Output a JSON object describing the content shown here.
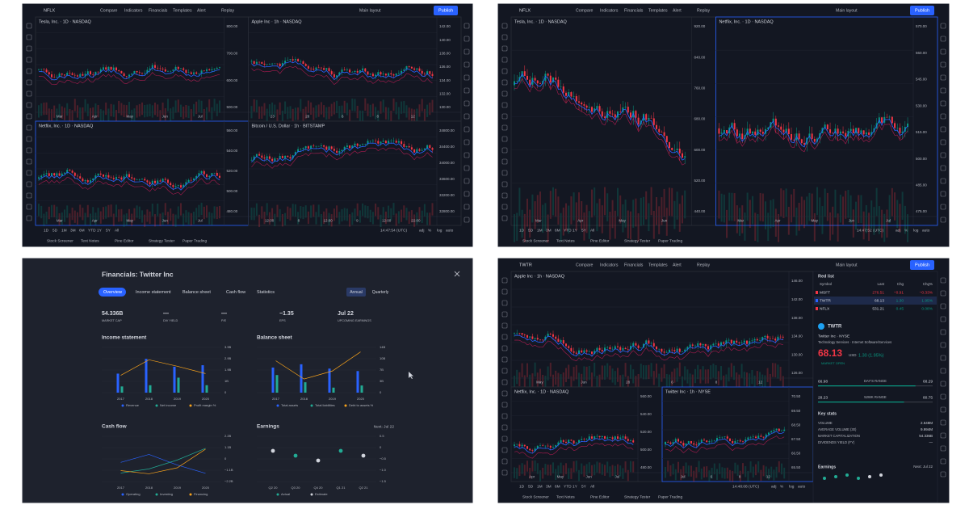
{
  "toolbar": {
    "items": [
      "Compare",
      "Indicators",
      "Financials",
      "Templates",
      "Alert",
      "Replay"
    ],
    "layout": "Main layout",
    "publish": "Publish"
  },
  "ranges": [
    "1D",
    "5D",
    "1M",
    "3M",
    "6M",
    "YTD",
    "1Y",
    "5Y",
    "All"
  ],
  "chart_options": [
    "adj",
    "%",
    "log",
    "auto"
  ],
  "bottom_tabs": [
    "Stock Screener",
    "Text Notes",
    "Pine Editor",
    "Strategy Tester",
    "Paper Trading"
  ],
  "screens": [
    {
      "symbol": "NFLX",
      "time": "14:47:54 (UTC)",
      "panes": [
        {
          "title": "Tesla, Inc. · 1D · NASDAQ",
          "axis": [
            "800.00",
            "700.00",
            "600.00",
            "500.00"
          ],
          "dates": [
            "Mar",
            "Apr",
            "May",
            "Jun",
            "Jul"
          ]
        },
        {
          "title": "Apple Inc · 1h · NASDAQ",
          "axis": [
            "142.00",
            "140.00",
            "138.00",
            "136.00",
            "134.00",
            "132.00",
            "130.00"
          ],
          "dates": [
            "23",
            "28",
            "6",
            "8",
            "12"
          ]
        },
        {
          "title": "Netflix, Inc. · 1D · NASDAQ",
          "axis": [
            "560.00",
            "540.00",
            "520.00",
            "500.00",
            "480.00"
          ],
          "dates": [
            "Mar",
            "Apr",
            "May",
            "Jun",
            "Jul"
          ]
        },
        {
          "title": "Bitcoin / U.S. Dollar · 1h · BITSTAMP",
          "axis": [
            "34800.00",
            "34400.00",
            "34000.00",
            "33600.00",
            "33200.00",
            "32800.00"
          ],
          "dates": [
            "12:00",
            "8",
            "12:00",
            "9",
            "12:00",
            "22:00"
          ]
        }
      ]
    },
    {
      "symbol": "NFLX",
      "time": "14:47:52 (UTC)",
      "panes": [
        {
          "title": "Tesla, Inc. · 1D · NASDAQ",
          "axis": [
            "920.00",
            "840.00",
            "760.00",
            "680.00",
            "600.00",
            "520.00",
            "440.00"
          ],
          "dates": [
            "Mar",
            "Apr",
            "May",
            "Jun"
          ]
        },
        {
          "title": "Netflix, Inc. · 1D · NASDAQ",
          "axis": [
            "570.00",
            "560.00",
            "545.00",
            "530.00",
            "515.00",
            "500.00",
            "485.00",
            "475.00"
          ],
          "dates": [
            "Mar",
            "Apr",
            "May",
            "Jun",
            "Jul"
          ]
        }
      ]
    },
    {
      "symbol": "TWTR",
      "time": "14:48:08 (UTC)",
      "panes": [
        {
          "title": "Apple Inc · 1h · NASDAQ",
          "axis": [
            "146.00",
            "142.00",
            "138.00",
            "134.00",
            "130.00",
            "126.00"
          ],
          "dates": [
            "May",
            "Jun",
            "28",
            "6",
            "8",
            "12"
          ]
        },
        {
          "title": "Netflix, Inc. · 1D · NASDAQ",
          "axis": [
            "560.00",
            "540.00",
            "520.00",
            "500.00",
            "480.00"
          ],
          "dates": [
            "Apr",
            "May",
            "Jun",
            "Jul"
          ]
        },
        {
          "title": "Twitter Inc · 1h · NYSE",
          "axis": [
            "70.50",
            "69.50",
            "68.50",
            "67.50",
            "66.50",
            "65.50"
          ],
          "dates": [
            "Jul",
            "6",
            "8",
            "12"
          ]
        }
      ]
    }
  ],
  "financials": {
    "title": "Financials: Twitter Inc",
    "tabs": [
      "Overview",
      "Income statement",
      "Balance sheet",
      "Cash flow",
      "Statistics"
    ],
    "periods": [
      "Annual",
      "Quarterly"
    ],
    "stats": [
      {
        "value": "54.336B",
        "label": "MARKET CAP"
      },
      {
        "value": "—",
        "label": "DIV YIELD"
      },
      {
        "value": "—",
        "label": "P/E"
      },
      {
        "value": "−1.35",
        "label": "EPS"
      },
      {
        "value": "Jul 22",
        "label": "UPCOMING EARNINGS"
      }
    ],
    "sections": [
      {
        "title": "Income statement",
        "axis": [
          "3.9B",
          "2.9B",
          "1.9B",
          "1B",
          "0"
        ],
        "periods": [
          "2017",
          "2018",
          "2019",
          "2020"
        ],
        "legend": [
          "Revenue",
          "Net income",
          "Profit margin %"
        ]
      },
      {
        "title": "Balance sheet",
        "axis": [
          "14B",
          "10B",
          "7B",
          "3B",
          "0"
        ],
        "periods": [
          "2017",
          "2018",
          "2019",
          "2020"
        ],
        "legend": [
          "Total assets",
          "Total liabilities",
          "Debt to assets %"
        ]
      },
      {
        "title": "Cash flow",
        "axis": [
          "2.2B",
          "1.1B",
          "0",
          "−1.1B",
          "−2.2B"
        ],
        "periods": [
          "2017",
          "2018",
          "2019",
          "2020"
        ],
        "legend": [
          "Operating",
          "Investing",
          "Financing"
        ]
      },
      {
        "title": "Earnings",
        "next": "Next: Jul 22",
        "axis": [
          "0.5",
          "0",
          "−0.5",
          "−1.0",
          "−1.5"
        ],
        "periods": [
          "Q2 20",
          "Q3 20",
          "Q4 20",
          "Q1 21",
          "Q2 21"
        ],
        "legend": [
          "Actual",
          "Estimate"
        ]
      }
    ]
  },
  "watchlist": {
    "title": "Red list",
    "columns": [
      "Symbol",
      "Last",
      "Chg",
      "Chg%"
    ],
    "rows": [
      [
        "MSFT",
        "276.51",
        "−0.91",
        "−0.33%"
      ],
      [
        "TWTR",
        "68.13",
        "1.30",
        "1.95%"
      ],
      [
        "NFLX",
        "531.21",
        "0.45",
        "0.08%"
      ]
    ],
    "detail": {
      "symbol": "TWTR",
      "name": "Twitter Inc · NYSE",
      "sector": "Technology Services · Internet Software/Services",
      "price": "68.13",
      "currency": "USD",
      "change": "1.30 (1.95%)",
      "status": "MARKET OPEN",
      "day_range": {
        "low": "66.98",
        "label": "DAY'S RANGE",
        "high": "68.29"
      },
      "year_range": {
        "low": "28.23",
        "label": "52WK RANGE",
        "high": "80.75"
      },
      "key_stats_title": "Key stats",
      "key_stats": [
        {
          "label": "VOLUME",
          "value": "2.548M"
        },
        {
          "label": "AVERAGE VOLUME (30)",
          "value": "9.994M"
        },
        {
          "label": "MARKET CAPITALIZATION",
          "value": "54.336B"
        },
        {
          "label": "DIVIDENDS YIELD (FY)",
          "value": "—"
        }
      ],
      "earnings_title": "Earnings",
      "earnings_next": "Next: Jul 22"
    }
  }
}
